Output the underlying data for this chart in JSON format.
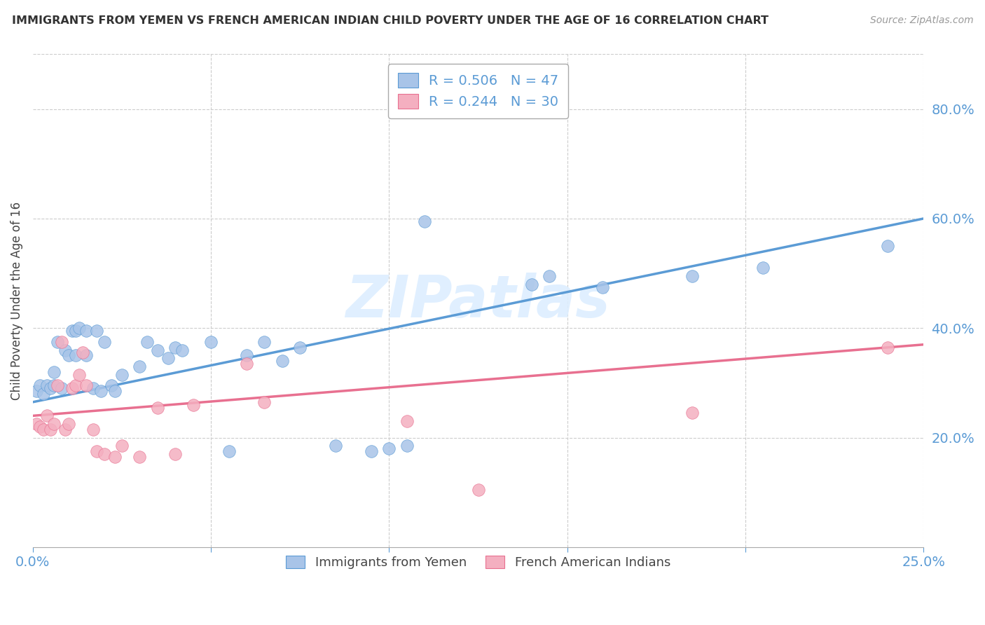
{
  "title": "IMMIGRANTS FROM YEMEN VS FRENCH AMERICAN INDIAN CHILD POVERTY UNDER THE AGE OF 16 CORRELATION CHART",
  "source": "Source: ZipAtlas.com",
  "ylabel": "Child Poverty Under the Age of 16",
  "right_yticks": [
    "20.0%",
    "40.0%",
    "60.0%",
    "80.0%"
  ],
  "right_ytick_vals": [
    0.2,
    0.4,
    0.6,
    0.8
  ],
  "xlim": [
    0.0,
    0.25
  ],
  "ylim": [
    0.0,
    0.9
  ],
  "legend_r1": "R = 0.506",
  "legend_n1": "N = 47",
  "legend_r2": "R = 0.244",
  "legend_n2": "N = 30",
  "color_blue": "#a8c4e8",
  "color_pink": "#f4afc0",
  "color_blue_line": "#5b9bd5",
  "color_pink_line": "#e87090",
  "color_text_blue": "#5b9bd5",
  "watermark": "ZIPatlas",
  "blue_scatter": [
    [
      0.001,
      0.285
    ],
    [
      0.002,
      0.295
    ],
    [
      0.003,
      0.28
    ],
    [
      0.004,
      0.295
    ],
    [
      0.005,
      0.29
    ],
    [
      0.006,
      0.295
    ],
    [
      0.006,
      0.32
    ],
    [
      0.007,
      0.375
    ],
    [
      0.008,
      0.29
    ],
    [
      0.009,
      0.36
    ],
    [
      0.01,
      0.35
    ],
    [
      0.011,
      0.395
    ],
    [
      0.012,
      0.395
    ],
    [
      0.012,
      0.35
    ],
    [
      0.013,
      0.4
    ],
    [
      0.015,
      0.395
    ],
    [
      0.015,
      0.35
    ],
    [
      0.017,
      0.29
    ],
    [
      0.018,
      0.395
    ],
    [
      0.019,
      0.285
    ],
    [
      0.02,
      0.375
    ],
    [
      0.022,
      0.295
    ],
    [
      0.023,
      0.285
    ],
    [
      0.025,
      0.315
    ],
    [
      0.03,
      0.33
    ],
    [
      0.032,
      0.375
    ],
    [
      0.035,
      0.36
    ],
    [
      0.038,
      0.345
    ],
    [
      0.04,
      0.365
    ],
    [
      0.042,
      0.36
    ],
    [
      0.05,
      0.375
    ],
    [
      0.055,
      0.175
    ],
    [
      0.06,
      0.35
    ],
    [
      0.065,
      0.375
    ],
    [
      0.07,
      0.34
    ],
    [
      0.075,
      0.365
    ],
    [
      0.085,
      0.185
    ],
    [
      0.095,
      0.175
    ],
    [
      0.1,
      0.18
    ],
    [
      0.105,
      0.185
    ],
    [
      0.11,
      0.595
    ],
    [
      0.14,
      0.48
    ],
    [
      0.145,
      0.495
    ],
    [
      0.16,
      0.475
    ],
    [
      0.185,
      0.495
    ],
    [
      0.205,
      0.51
    ],
    [
      0.24,
      0.55
    ]
  ],
  "pink_scatter": [
    [
      0.001,
      0.225
    ],
    [
      0.002,
      0.22
    ],
    [
      0.003,
      0.215
    ],
    [
      0.004,
      0.24
    ],
    [
      0.005,
      0.215
    ],
    [
      0.006,
      0.225
    ],
    [
      0.007,
      0.295
    ],
    [
      0.008,
      0.375
    ],
    [
      0.009,
      0.215
    ],
    [
      0.01,
      0.225
    ],
    [
      0.011,
      0.29
    ],
    [
      0.012,
      0.295
    ],
    [
      0.013,
      0.315
    ],
    [
      0.014,
      0.355
    ],
    [
      0.015,
      0.295
    ],
    [
      0.017,
      0.215
    ],
    [
      0.018,
      0.175
    ],
    [
      0.02,
      0.17
    ],
    [
      0.023,
      0.165
    ],
    [
      0.025,
      0.185
    ],
    [
      0.03,
      0.165
    ],
    [
      0.035,
      0.255
    ],
    [
      0.04,
      0.17
    ],
    [
      0.045,
      0.26
    ],
    [
      0.06,
      0.335
    ],
    [
      0.065,
      0.265
    ],
    [
      0.105,
      0.23
    ],
    [
      0.125,
      0.105
    ],
    [
      0.185,
      0.245
    ],
    [
      0.24,
      0.365
    ]
  ],
  "blue_line_x": [
    0.0,
    0.25
  ],
  "blue_line_y": [
    0.265,
    0.6
  ],
  "pink_line_x": [
    0.0,
    0.25
  ],
  "pink_line_y": [
    0.24,
    0.37
  ]
}
